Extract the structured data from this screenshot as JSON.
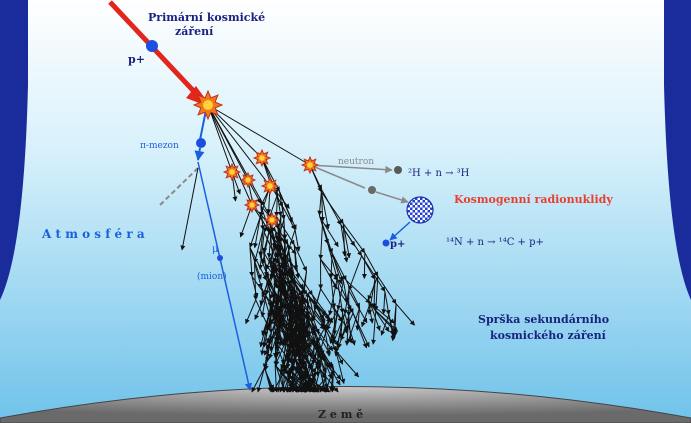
{
  "labels": {
    "primary_line1": "Primární kosmické",
    "primary_line2": "záření",
    "proton_primary": "p+",
    "pi_meson": "π-mezon",
    "atmosphere": "A t m o s f é r a",
    "mu_symbol": "μ",
    "mu_meson": "(mion)",
    "neutron": "neutron",
    "reaction1": "²H + n → ³H",
    "cosmogenic": "Kosmogenní radionuklidy",
    "proton_secondary": "p+",
    "reaction2": "¹⁴N + n → ¹⁴C + p+",
    "shower_line1": "Sprška sekundárního",
    "shower_line2": "kosmického záření",
    "earth": "Z e m ě"
  },
  "colors": {
    "background": "#1a2c9c",
    "sky_top": "#ffffff",
    "sky_bottom": "#6fc2ea",
    "primary_ray": "#e3261b",
    "label_navy": "#1a2280",
    "meson_blue": "#1a5fe0",
    "radionuclide_red": "#e84030",
    "earth_gray": "#8c8c8c"
  },
  "icons": {
    "proton": "blue-dot-icon",
    "collision": "orange-burst-icon",
    "nucleus": "checkered-sphere-icon"
  }
}
